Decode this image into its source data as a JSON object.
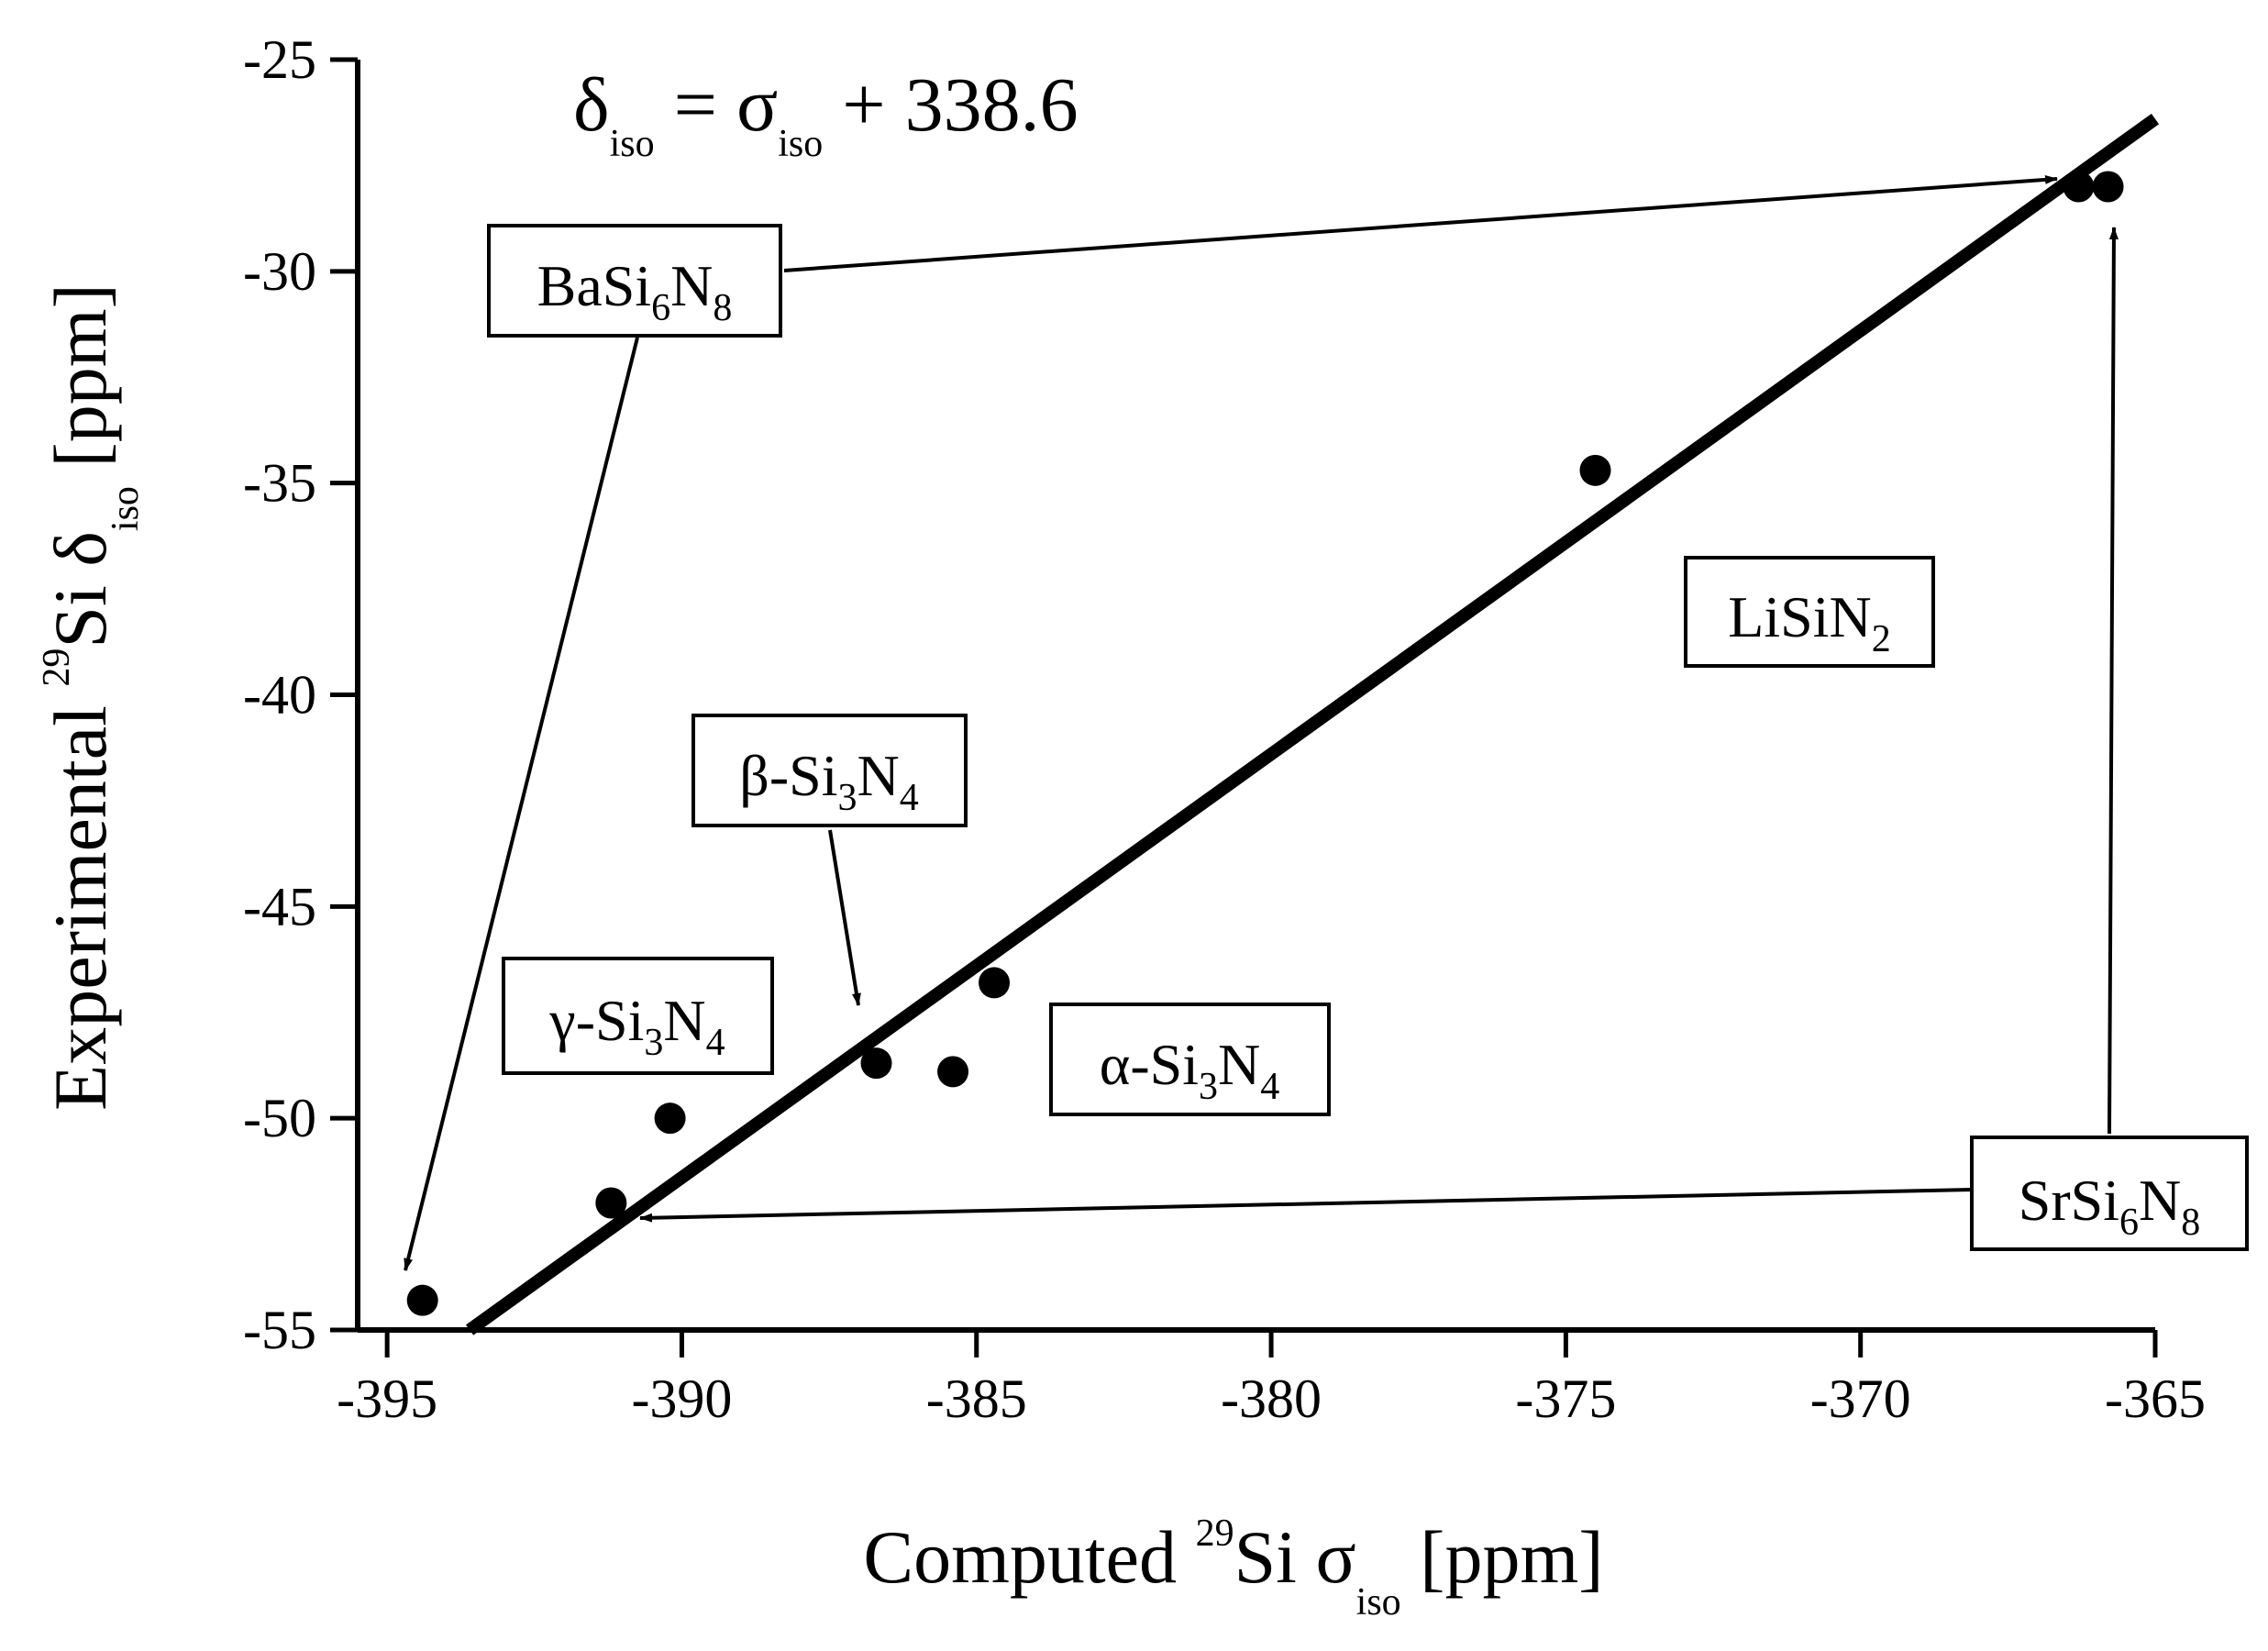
{
  "chart_data": {
    "type": "scatter",
    "xlim": [
      -395.5,
      -365
    ],
    "ylim": [
      -55,
      -25
    ],
    "x_ticks": [
      "-395",
      "-390",
      "-385",
      "-380",
      "-375",
      "-370",
      "-365"
    ],
    "y_ticks": [
      "-25",
      "-30",
      "-35",
      "-40",
      "-45",
      "-50",
      "-55"
    ],
    "xlabel": {
      "pre": "Computed ",
      "sup": "29",
      "mid": "Si σ",
      "sub": "iso",
      "post": " [ppm]"
    },
    "ylabel": {
      "pre": "Experimental ",
      "sup": "29",
      "mid": "Si δ",
      "sub": "iso",
      "post": " [ppm]"
    },
    "equation": {
      "d": "δ",
      "d_sub": "iso",
      "mid": " = σ",
      "s_sub": "iso",
      "post": " + 338.6"
    },
    "points": [
      {
        "x": -394.4,
        "y": -54.3
      },
      {
        "x": -391.2,
        "y": -52.0
      },
      {
        "x": -390.2,
        "y": -50.0
      },
      {
        "x": -386.7,
        "y": -48.7
      },
      {
        "x": -385.4,
        "y": -48.9
      },
      {
        "x": -384.7,
        "y": -46.8
      },
      {
        "x": -374.5,
        "y": -34.7
      },
      {
        "x": -366.3,
        "y": -28.0
      },
      {
        "x": -365.8,
        "y": -28.0
      }
    ],
    "fit_line": {
      "x1": -393.6,
      "y1": -55.0,
      "x2": -365.0,
      "y2": -26.4
    },
    "labels": [
      {
        "id": "basi",
        "parts": [
          {
            "t": "BaSi"
          },
          {
            "t": "6",
            "sub": true
          },
          {
            "t": "N"
          },
          {
            "t": "8",
            "sub": true
          }
        ]
      },
      {
        "id": "lisi",
        "parts": [
          {
            "t": "LiSiN"
          },
          {
            "t": "2",
            "sub": true
          }
        ]
      },
      {
        "id": "beta",
        "parts": [
          {
            "t": "β-Si"
          },
          {
            "t": "3",
            "sub": true
          },
          {
            "t": "N"
          },
          {
            "t": "4",
            "sub": true
          }
        ]
      },
      {
        "id": "gamma",
        "parts": [
          {
            "t": "γ-Si"
          },
          {
            "t": "3",
            "sub": true
          },
          {
            "t": "N"
          },
          {
            "t": "4",
            "sub": true
          }
        ]
      },
      {
        "id": "alpha",
        "parts": [
          {
            "t": "α-Si"
          },
          {
            "t": "3",
            "sub": true
          },
          {
            "t": "N"
          },
          {
            "t": "4",
            "sub": true
          }
        ]
      },
      {
        "id": "srsi",
        "parts": [
          {
            "t": "SrSi"
          },
          {
            "t": "6",
            "sub": true
          },
          {
            "t": "N"
          },
          {
            "t": "8",
            "sub": true
          }
        ]
      }
    ]
  }
}
